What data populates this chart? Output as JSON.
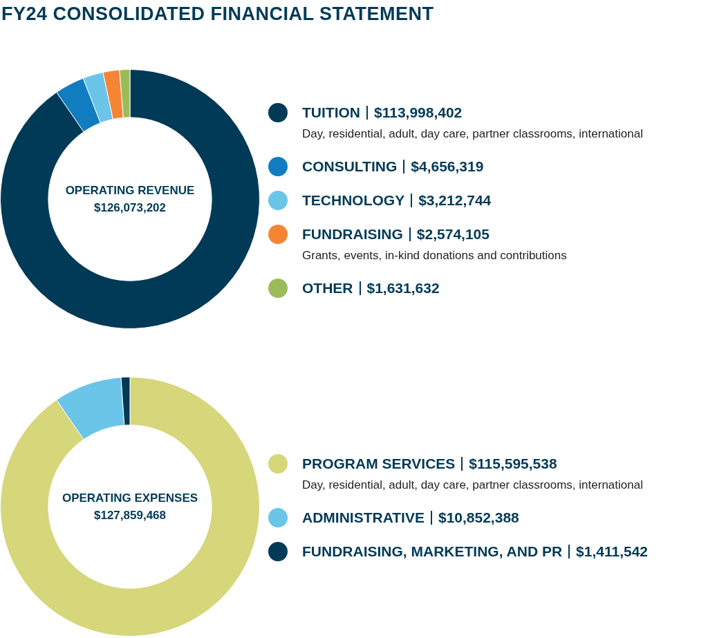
{
  "chart_data": [
    {
      "type": "donut",
      "title": "FY24 CONSOLIDATED FINANCIAL STATEMENT",
      "categories": [
        "TUITION",
        "CONSULTING",
        "TECHNOLOGY",
        "FUNDRAISING",
        "OTHER"
      ],
      "values": [
        113998402,
        4656319,
        3212744,
        2574105,
        1631632
      ],
      "value_labels": [
        "$113,998,402",
        "$4,656,319",
        "$3,212,744",
        "$2,574,105",
        "$1,631,632"
      ],
      "colors": [
        "#003a57",
        "#0f7dbf",
        "#6bc5e8",
        "#f58534",
        "#9bbb59"
      ],
      "legend": "right",
      "annotations": [
        "OPERATING REVENUE",
        "$126,073,202",
        {
          "text": "Day, residential, adult, day care, partner classrooms, international",
          "x": "TUITION"
        },
        {
          "text": "Grants, events, in-kind donations and contributions",
          "x": "FUNDRAISING"
        }
      ]
    },
    {
      "type": "donut",
      "categories": [
        "PROGRAM SERVICES",
        "ADMINISTRATIVE",
        "FUNDRAISING, MARKETING, AND PR"
      ],
      "values": [
        115595538,
        10852388,
        1411542
      ],
      "value_labels": [
        "$115,595,538",
        "$10,852,388",
        "$1,411,542"
      ],
      "colors": [
        "#d6d67a",
        "#6bc5e8",
        "#003a57"
      ],
      "legend": "right",
      "annotations": [
        "OPERATING EXPENSES",
        "$127,859,468",
        {
          "text": "Day, residential, adult, day care, partner classrooms, international",
          "x": "PROGRAM SERVICES"
        }
      ]
    }
  ]
}
